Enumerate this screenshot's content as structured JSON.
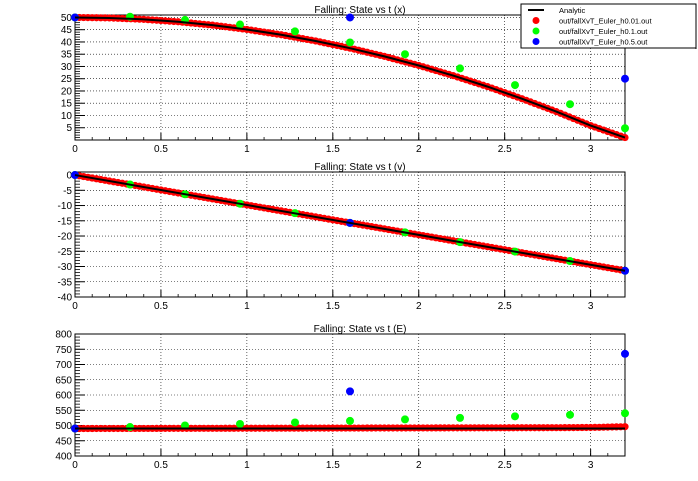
{
  "legend": {
    "entries": [
      {
        "label": "Analytic",
        "kind": "line",
        "color": "#000000"
      },
      {
        "label": "out/fallXvT_Euler_h0.01.out",
        "kind": "marker",
        "color": "#ff0000"
      },
      {
        "label": "out/fallXvT_Euler_h0.1.out",
        "kind": "marker",
        "color": "#00ff00"
      },
      {
        "label": "out/fallXvT_Euler_h0.5.out",
        "kind": "marker",
        "color": "#0000ff"
      }
    ]
  },
  "chart_data": [
    {
      "type": "scatter",
      "title": "Falling: State vs t  (x)",
      "xlim": [
        0,
        3.2
      ],
      "ylim": [
        0,
        51
      ],
      "xticks": [
        0,
        0.5,
        1,
        1.5,
        2,
        2.5,
        3
      ],
      "xtick_labels": [
        "0",
        "0.5",
        "1",
        "1.5",
        "2",
        "2.5",
        "3"
      ],
      "yticks": [
        5,
        10,
        15,
        20,
        25,
        30,
        35,
        40,
        45,
        50
      ],
      "ytick_labels": [
        "5",
        "10",
        "15",
        "20",
        "25",
        "30",
        "35",
        "40",
        "45",
        "50"
      ],
      "grid": true,
      "series": [
        {
          "name": "Analytic",
          "style": "line",
          "color": "#000000",
          "x": [
            0,
            0.2,
            0.4,
            0.6,
            0.8,
            1.0,
            1.2,
            1.4,
            1.6,
            1.8,
            2.0,
            2.2,
            2.4,
            2.6,
            2.8,
            3.0,
            3.2
          ],
          "y": [
            50,
            49.8,
            49.22,
            48.24,
            46.86,
            45.1,
            42.94,
            40.4,
            37.46,
            34.12,
            30.4,
            26.28,
            21.78,
            16.86,
            11.58,
            5.9,
            1.0
          ]
        },
        {
          "name": "out/fallXvT_Euler_h0.01.out",
          "style": "marker",
          "color": "#ff0000",
          "x": [
            0,
            0.2,
            0.4,
            0.6,
            0.8,
            1.0,
            1.2,
            1.4,
            1.6,
            1.8,
            2.0,
            2.2,
            2.4,
            2.6,
            2.8,
            3.0,
            3.2
          ],
          "y": [
            50,
            49.8,
            49.22,
            48.24,
            46.86,
            45.1,
            42.94,
            40.4,
            37.46,
            34.12,
            30.4,
            26.28,
            21.78,
            16.86,
            11.58,
            5.9,
            1.0
          ]
        },
        {
          "name": "out/fallXvT_Euler_h0.1.out",
          "style": "marker",
          "color": "#00ff00",
          "x": [
            0,
            0.32,
            0.64,
            0.96,
            1.28,
            1.6,
            1.92,
            2.24,
            2.56,
            2.88,
            3.2
          ],
          "y": [
            50,
            50.3,
            49.0,
            47.1,
            44.3,
            39.8,
            35.0,
            29.2,
            22.4,
            14.6,
            4.8
          ]
        },
        {
          "name": "out/fallXvT_Euler_h0.5.out",
          "style": "marker",
          "color": "#0000ff",
          "x": [
            0,
            1.6,
            3.2
          ],
          "y": [
            50,
            50,
            25
          ]
        }
      ]
    },
    {
      "type": "scatter",
      "title": "Falling: State vs t  (v)",
      "xlim": [
        0,
        3.2
      ],
      "ylim": [
        -40,
        1
      ],
      "xticks": [
        0,
        0.5,
        1,
        1.5,
        2,
        2.5,
        3
      ],
      "xtick_labels": [
        "0",
        "0.5",
        "1",
        "1.5",
        "2",
        "2.5",
        "3"
      ],
      "yticks": [
        0,
        -5,
        -10,
        -15,
        -20,
        -25,
        -30,
        -35,
        -40
      ],
      "ytick_labels": [
        "0",
        "-5",
        "-10",
        "-15",
        "-20",
        "-25",
        "-30",
        "-35",
        "-40"
      ],
      "grid": true,
      "series": [
        {
          "name": "Analytic",
          "style": "line",
          "color": "#000000",
          "x": [
            0,
            3.2
          ],
          "y": [
            0,
            -31.4
          ]
        },
        {
          "name": "out/fallXvT_Euler_h0.01.out",
          "style": "marker",
          "color": "#ff0000",
          "x": [
            0,
            0.2,
            0.4,
            0.6,
            0.8,
            1.0,
            1.2,
            1.4,
            1.6,
            1.8,
            2.0,
            2.2,
            2.4,
            2.6,
            2.8,
            3.0,
            3.2
          ],
          "y": [
            0,
            -1.96,
            -3.92,
            -5.88,
            -7.84,
            -9.8,
            -11.76,
            -13.72,
            -15.68,
            -17.64,
            -19.6,
            -21.56,
            -23.52,
            -25.48,
            -27.44,
            -29.4,
            -31.36
          ]
        },
        {
          "name": "out/fallXvT_Euler_h0.1.out",
          "style": "marker",
          "color": "#00ff00",
          "x": [
            0,
            0.32,
            0.64,
            0.96,
            1.28,
            1.6,
            1.92,
            2.24,
            2.56,
            2.88,
            3.2
          ],
          "y": [
            0,
            -3.1,
            -6.3,
            -9.4,
            -12.5,
            -15.7,
            -18.8,
            -22.0,
            -25.1,
            -28.2,
            -31.4
          ]
        },
        {
          "name": "out/fallXvT_Euler_h0.5.out",
          "style": "marker",
          "color": "#0000ff",
          "x": [
            0,
            1.6,
            3.2
          ],
          "y": [
            0,
            -15.7,
            -31.4
          ]
        }
      ]
    },
    {
      "type": "scatter",
      "title": "Falling: State vs t  (E)",
      "xlim": [
        0,
        3.2
      ],
      "ylim": [
        400,
        800
      ],
      "xticks": [
        0,
        0.5,
        1,
        1.5,
        2,
        2.5,
        3
      ],
      "xtick_labels": [
        "0",
        "0.5",
        "1",
        "1.5",
        "2",
        "2.5",
        "3"
      ],
      "yticks": [
        400,
        450,
        500,
        550,
        600,
        650,
        700,
        750,
        800
      ],
      "ytick_labels": [
        "400",
        "450",
        "500",
        "550",
        "600",
        "650",
        "700",
        "750",
        "800"
      ],
      "grid": true,
      "series": [
        {
          "name": "Analytic",
          "style": "line",
          "color": "#000000",
          "x": [
            0,
            3.2
          ],
          "y": [
            490,
            490
          ]
        },
        {
          "name": "out/fallXvT_Euler_h0.01.out",
          "style": "marker",
          "color": "#ff0000",
          "x": [
            0,
            0.2,
            0.4,
            0.6,
            0.8,
            1.0,
            1.2,
            1.4,
            1.6,
            1.8,
            2.0,
            2.2,
            2.4,
            2.6,
            2.8,
            3.0,
            3.2
          ],
          "y": [
            490,
            490.2,
            490.4,
            490.6,
            490.8,
            491.0,
            491.2,
            491.4,
            491.6,
            491.8,
            492.0,
            492.2,
            492.4,
            492.6,
            492.8,
            493.5,
            496
          ]
        },
        {
          "name": "out/fallXvT_Euler_h0.1.out",
          "style": "marker",
          "color": "#00ff00",
          "x": [
            0,
            0.32,
            0.64,
            0.96,
            1.28,
            1.6,
            1.92,
            2.24,
            2.56,
            2.88,
            3.2
          ],
          "y": [
            490,
            495,
            500,
            505,
            510,
            515,
            520,
            525,
            530,
            535,
            540
          ]
        },
        {
          "name": "out/fallXvT_Euler_h0.5.out",
          "style": "marker",
          "color": "#0000ff",
          "x": [
            0,
            1.6,
            3.2
          ],
          "y": [
            490,
            612,
            735
          ]
        }
      ]
    }
  ]
}
